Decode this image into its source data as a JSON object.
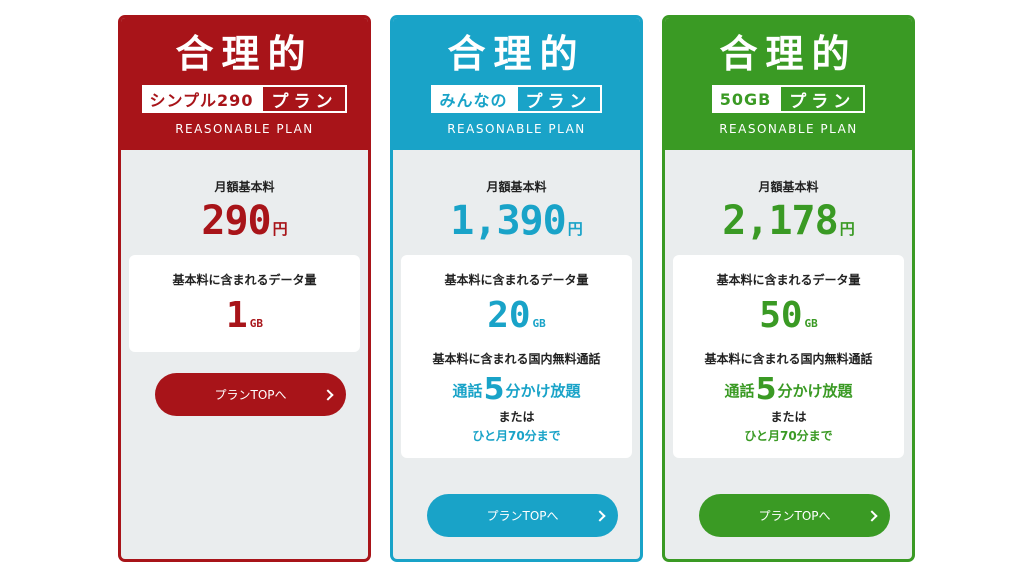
{
  "common": {
    "title": "合理的",
    "subtitle": "REASONABLE PLAN",
    "monthly_label": "月額基本料",
    "data_label": "基本料に含まれるデータ量",
    "call_label": "基本料に含まれる国内無料通話",
    "call_prefix": "通話",
    "call_minutes": "5",
    "call_suffix": "分かけ放題",
    "or": "または",
    "call_alt": "ひと月70分まで",
    "price_unit": "円",
    "data_unit": "GB",
    "button_label": "プランTOPへ",
    "button_icon": "chevron-right-icon"
  },
  "plans": [
    {
      "tag_left": "シンプル290",
      "tag_right": "プラン",
      "price": "290",
      "data": "1",
      "color": "#a81419"
    },
    {
      "tag_left": "みんなの",
      "tag_right": "プラン",
      "price": "1,390",
      "data": "20",
      "color": "#19a3c8"
    },
    {
      "tag_left": "50GB",
      "tag_right": "プラン",
      "price": "2,178",
      "data": "50",
      "color": "#3a9a24"
    }
  ]
}
